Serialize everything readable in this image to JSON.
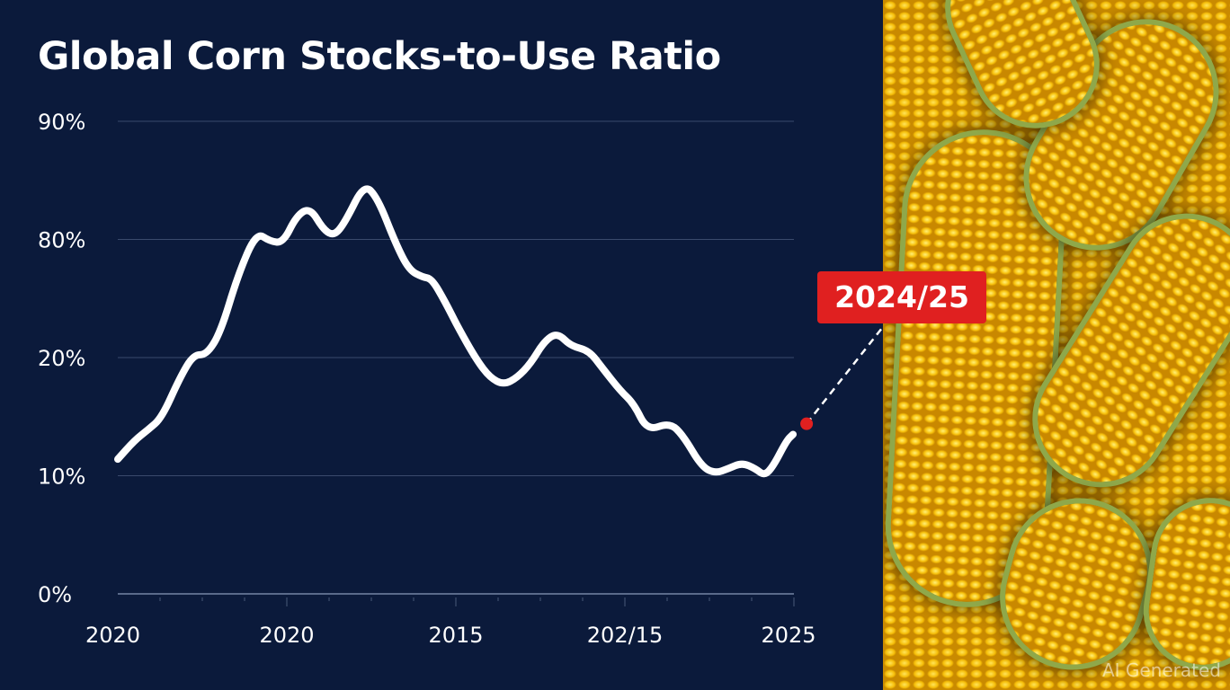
{
  "chart_data": {
    "type": "line",
    "title": "Global Corn Stocks-to-Use Ratio",
    "xlabel": "",
    "ylabel": "",
    "y_ticks": [
      {
        "value": 0,
        "label": "0%"
      },
      {
        "value": 10,
        "label": "10%"
      },
      {
        "value": 20,
        "label": "20%"
      },
      {
        "value": 80,
        "label": "80%"
      },
      {
        "value": 90,
        "label": "90%"
      }
    ],
    "y_scale": "non-uniform (tick labels equally spaced)",
    "x_ticks": [
      {
        "value": 0,
        "label": "2020"
      },
      {
        "value": 4,
        "label": "2020"
      },
      {
        "value": 8,
        "label": "2015"
      },
      {
        "value": 12,
        "label": "202/15"
      },
      {
        "value": 16,
        "label": "2025"
      }
    ],
    "xlim": [
      0,
      16
    ],
    "grid": true,
    "series": [
      {
        "color": "#ffffff",
        "x": [
          0,
          0.4,
          0.72,
          1.04,
          1.47,
          1.79,
          2.1,
          2.43,
          2.85,
          3.28,
          3.6,
          3.91,
          4.23,
          4.55,
          4.87,
          5.13,
          5.4,
          5.83,
          6.15,
          6.57,
          6.89,
          7.21,
          7.43,
          7.74,
          8.06,
          8.49,
          8.81,
          9.13,
          9.45,
          9.77,
          10.09,
          10.4,
          10.72,
          11.15,
          11.47,
          11.89,
          12.21,
          12.53,
          13.06,
          13.38,
          13.81,
          14.13,
          14.45,
          14.77,
          15.09,
          15.3,
          15.51,
          15.83,
          15.98
        ],
        "y": [
          11.4,
          13.0,
          13.9,
          14.9,
          18.3,
          21.4,
          21.4,
          32.7,
          62.3,
          80.6,
          79.1,
          78.2,
          82.0,
          82.7,
          80.8,
          80.3,
          81.6,
          84.7,
          83.5,
          78.2,
          64.5,
          60.9,
          60.0,
          48.6,
          35.0,
          19.8,
          18.3,
          17.7,
          18.3,
          19.5,
          28.2,
          32.7,
          25.9,
          23.6,
          19.1,
          17.2,
          16.1,
          13.8,
          14.5,
          13.4,
          10.8,
          10.2,
          10.6,
          11.1,
          10.6,
          10.0,
          10.8,
          13.0,
          13.5
        ]
      }
    ],
    "annotations": [
      {
        "label": "2024/25",
        "x": 16.3,
        "y": 14.4,
        "color": "#e02020"
      }
    ]
  },
  "watermark": "AI Generated",
  "colors": {
    "background": "#0b1a3b",
    "line": "#ffffff",
    "highlight": "#e02020",
    "grid": "#3a4a6c"
  }
}
